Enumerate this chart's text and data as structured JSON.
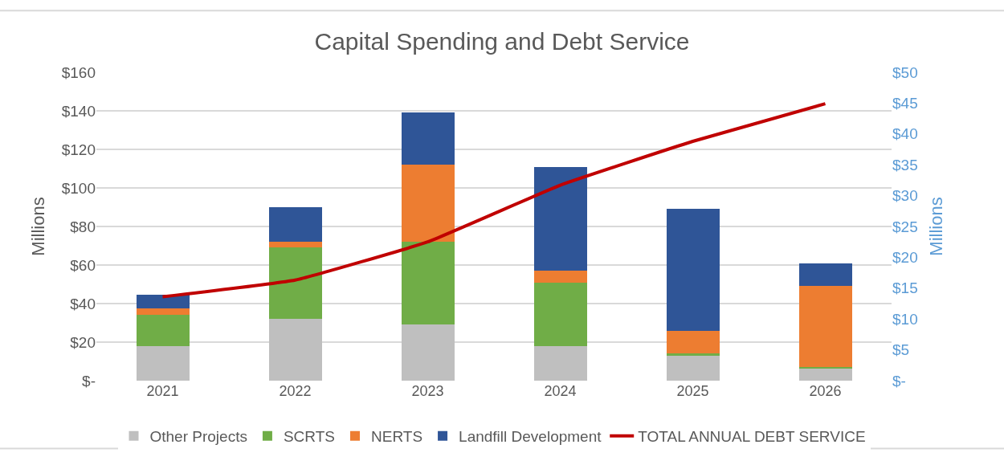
{
  "chart_data": {
    "type": "bar",
    "stacked": true,
    "title": "Capital Spending and Debt Service",
    "ylabel": "Millions",
    "y2label": "Millions",
    "categories": [
      "2021",
      "2022",
      "2023",
      "2024",
      "2025",
      "2026"
    ],
    "series": [
      {
        "name": "Other Projects",
        "color": "#bfbfbf",
        "values": [
          18,
          32,
          29,
          18,
          13,
          6.5
        ]
      },
      {
        "name": "SCRTS",
        "color": "#70ad47",
        "values": [
          16,
          37,
          43,
          33,
          1,
          0.5
        ]
      },
      {
        "name": "NERTS",
        "color": "#ed7d31",
        "values": [
          3.5,
          3,
          40,
          6,
          12,
          42
        ]
      },
      {
        "name": "Landfill Development",
        "color": "#2f5597",
        "values": [
          7,
          18,
          27,
          54,
          63,
          12
        ]
      },
      {
        "name": "TOTAL ANNUAL DEBT SERVICE",
        "type": "line",
        "axis": "y2",
        "color": "#c00000",
        "marker": "none",
        "values": [
          13.6,
          16.3,
          22.5,
          31.7,
          38.8,
          44.9
        ]
      }
    ],
    "ylim": [
      0,
      160
    ],
    "yticks": [
      {
        "value": 0,
        "label": "$-"
      },
      {
        "value": 20,
        "label": "$20"
      },
      {
        "value": 40,
        "label": "$40"
      },
      {
        "value": 60,
        "label": "$60"
      },
      {
        "value": 80,
        "label": "$80"
      },
      {
        "value": 100,
        "label": "$100"
      },
      {
        "value": 120,
        "label": "$120"
      },
      {
        "value": 140,
        "label": "$140"
      },
      {
        "value": 160,
        "label": "$160"
      }
    ],
    "y2lim": [
      0,
      50
    ],
    "y2ticks": [
      {
        "value": 0,
        "label": "$-"
      },
      {
        "value": 5,
        "label": "$5"
      },
      {
        "value": 10,
        "label": "$10"
      },
      {
        "value": 15,
        "label": "$15"
      },
      {
        "value": 20,
        "label": "$20"
      },
      {
        "value": 25,
        "label": "$25"
      },
      {
        "value": 30,
        "label": "$30"
      },
      {
        "value": 35,
        "label": "$35"
      },
      {
        "value": 40,
        "label": "$40"
      },
      {
        "value": 45,
        "label": "$45"
      },
      {
        "value": 50,
        "label": "$50"
      }
    ],
    "grid": "y",
    "legend": "bottom"
  }
}
